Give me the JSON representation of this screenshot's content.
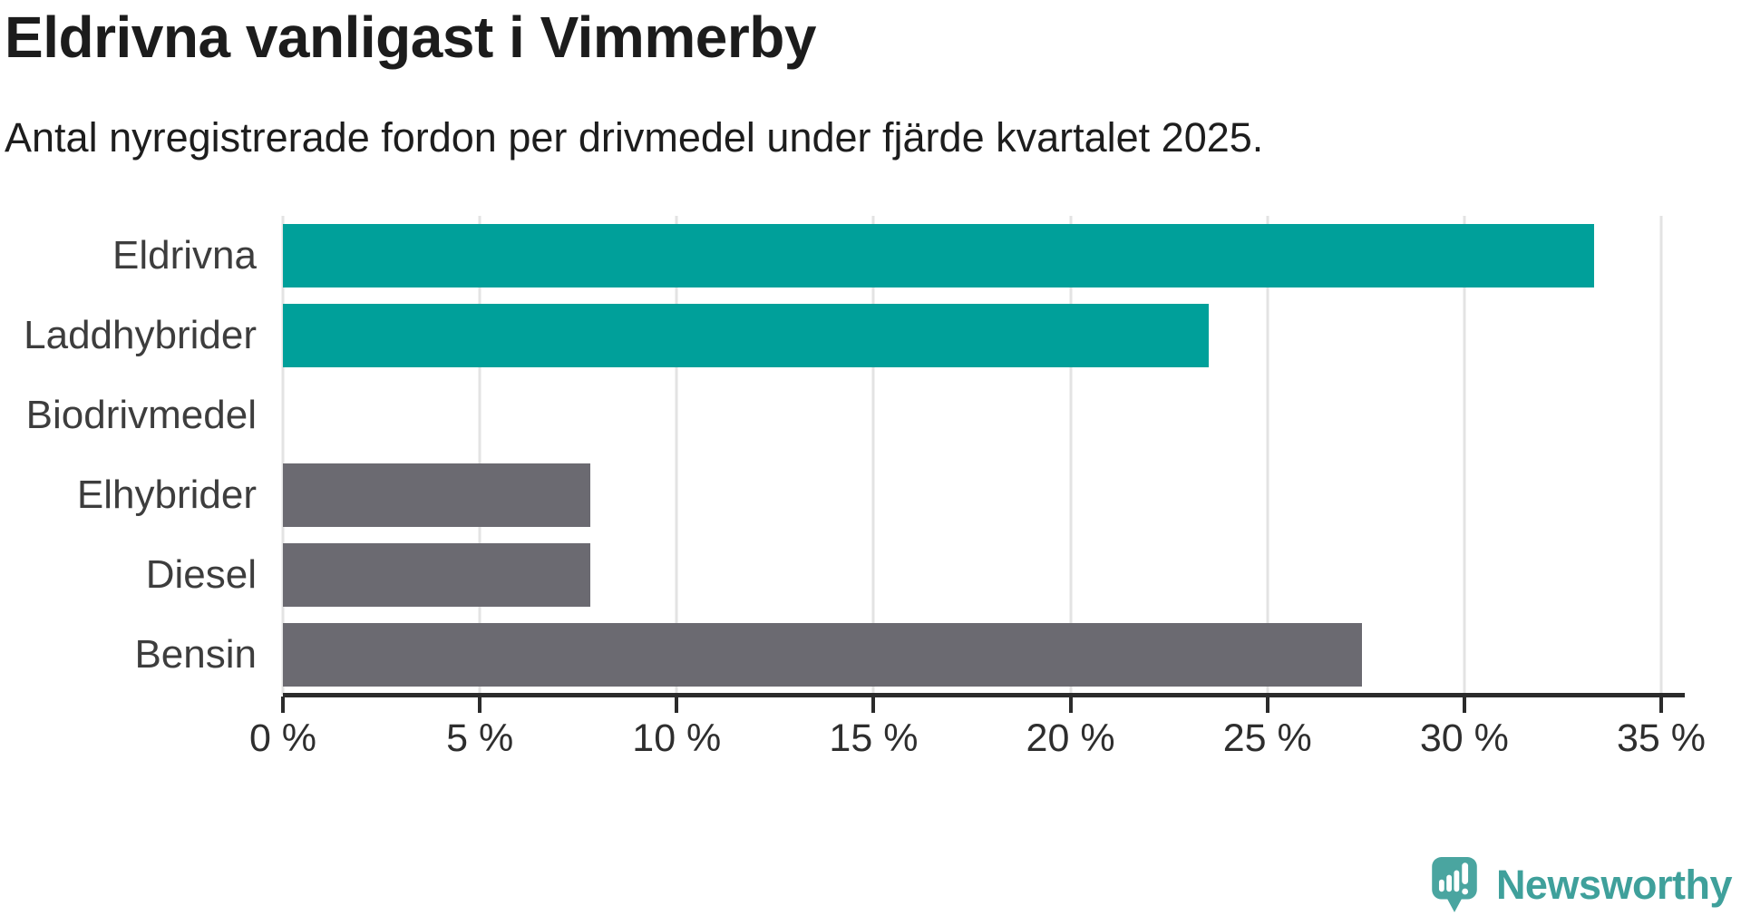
{
  "chart_data": {
    "type": "bar",
    "orientation": "horizontal",
    "title": "Eldrivna vanligast i Vimmerby",
    "subtitle": "Antal nyregistrerade fordon per drivmedel under fjärde kvartalet 2025.",
    "categories": [
      "Eldrivna",
      "Laddhybrider",
      "Biodrivmedel",
      "Elhybrider",
      "Diesel",
      "Bensin"
    ],
    "values": [
      33.3,
      23.5,
      0,
      7.8,
      7.8,
      27.4
    ],
    "unit": "%",
    "bar_colors": [
      "#00a09a",
      "#00a09a",
      "#6b6a71",
      "#6b6a71",
      "#6b6a71",
      "#6b6a71"
    ],
    "xlabel": "",
    "ylabel": "",
    "xlim": [
      0,
      35
    ],
    "xticks": [
      0,
      5,
      10,
      15,
      20,
      25,
      30,
      35
    ],
    "xtick_labels": [
      "0 %",
      "5 %",
      "10 %",
      "15 %",
      "20 %",
      "25 %",
      "30 %",
      "35 %"
    ],
    "grid": true,
    "legend": "none"
  },
  "colors": {
    "accent_teal": "#00a09a",
    "neutral_gray": "#6b6a71",
    "gridline": "#e3e3e3",
    "axis": "#2b2b2b",
    "title_text": "#1c1c1c",
    "label_text": "#3d3d3d",
    "logo_teal": "#4aa5a0"
  },
  "branding": {
    "logo_text": "Newsworthy"
  }
}
